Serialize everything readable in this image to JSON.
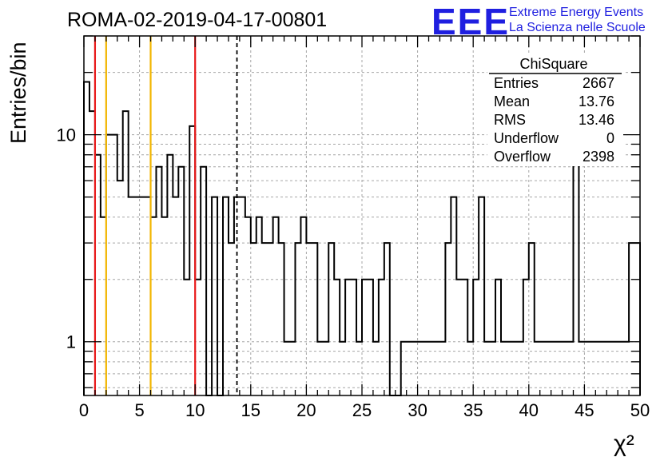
{
  "header": {
    "run_title": "ROMA-02-2019-04-17-00801",
    "logo_text": "EEE",
    "logo_line1": "Extreme Energy Events",
    "logo_line2": "La Scienza nelle Scuole"
  },
  "colors": {
    "logo_blue": "#1f1fe0",
    "red_line": "#e8191a",
    "orange_line": "#f2b600",
    "grid": "#a6a6a6",
    "hist": "#000000"
  },
  "stats": {
    "title": "ChiSquare",
    "rows": [
      {
        "label": "Entries",
        "value": "2667"
      },
      {
        "label": "Mean",
        "value": "13.76"
      },
      {
        "label": "RMS",
        "value": "13.46"
      },
      {
        "label": "Underflow",
        "value": "0"
      },
      {
        "label": "Overflow",
        "value": "2398"
      }
    ]
  },
  "chart_data": {
    "type": "histogram",
    "xlabel": "χ²",
    "ylabel": "Entries/bin",
    "xlim": [
      0,
      50
    ],
    "ylim": [
      0.55,
      30
    ],
    "yscale": "log",
    "grid": true,
    "legend": "stats box top-right",
    "bin_width": 0.5,
    "x_ticks": [
      0,
      5,
      10,
      15,
      20,
      25,
      30,
      35,
      40,
      45,
      50
    ],
    "y_ticks": [
      {
        "value": 1,
        "label": "1"
      },
      {
        "value": 10,
        "label": "10"
      }
    ],
    "values": [
      18,
      13,
      8,
      4,
      10,
      10,
      6,
      13,
      5,
      5,
      5,
      5,
      4,
      7,
      4,
      8,
      5,
      7,
      2,
      11,
      2,
      7,
      0,
      5,
      0,
      5,
      3,
      5,
      5,
      4,
      3,
      4,
      3,
      3,
      4,
      3,
      1,
      1,
      3,
      4,
      3,
      3,
      1,
      1,
      3,
      2,
      1,
      2,
      2,
      1,
      2,
      2,
      1,
      2,
      3,
      0,
      0,
      1,
      1,
      1,
      1,
      1,
      1,
      1,
      1,
      3,
      5,
      2,
      2,
      1,
      2,
      5,
      1,
      1,
      2,
      1,
      1,
      1,
      1,
      2,
      3,
      1,
      1,
      1,
      1,
      1,
      1,
      1,
      8,
      1,
      1,
      1,
      1,
      1,
      1,
      1,
      1,
      1,
      3,
      3
    ],
    "vertical_lines": [
      {
        "x": 1,
        "color": "red",
        "style": "solid"
      },
      {
        "x": 2,
        "color": "orange",
        "style": "solid"
      },
      {
        "x": 6,
        "color": "orange",
        "style": "solid"
      },
      {
        "x": 10,
        "color": "red",
        "style": "solid"
      },
      {
        "x": 13.76,
        "color": "black",
        "style": "dashed"
      }
    ]
  }
}
